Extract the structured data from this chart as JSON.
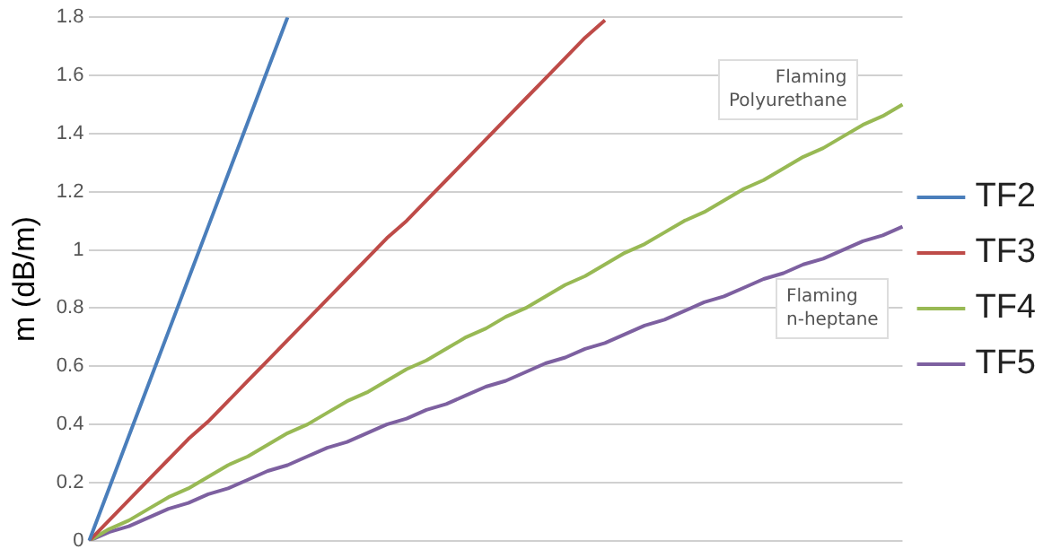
{
  "chart_data": {
    "type": "line",
    "ylabel": "m (dB/m)",
    "categories": [
      null,
      null,
      null,
      null,
      null,
      null,
      null,
      null,
      null,
      null,
      null,
      null,
      null,
      null,
      null,
      null,
      null,
      null,
      null,
      null,
      null,
      null,
      null,
      null,
      null,
      null,
      null,
      null,
      null,
      null,
      null,
      null,
      null,
      null,
      null,
      null,
      null,
      null,
      null,
      null,
      null,
      null
    ],
    "series": [
      {
        "name": "TF2",
        "color": "#4a7ebb",
        "values": [
          0,
          0.18,
          0.36,
          0.54,
          0.72,
          0.9,
          1.08,
          1.26,
          1.44,
          1.62,
          1.8,
          null,
          null,
          null,
          null,
          null,
          null,
          null,
          null,
          null,
          null,
          null,
          null,
          null,
          null,
          null,
          null,
          null,
          null,
          null,
          null,
          null,
          null,
          null,
          null,
          null,
          null,
          null,
          null,
          null,
          null,
          null
        ]
      },
      {
        "name": "TF3",
        "color": "#be4b48",
        "values": [
          0,
          0.07,
          0.14,
          0.21,
          0.28,
          0.35,
          0.41,
          0.48,
          0.55,
          0.62,
          0.69,
          0.76,
          0.83,
          0.9,
          0.97,
          1.04,
          1.1,
          1.17,
          1.24,
          1.31,
          1.38,
          1.45,
          1.52,
          1.59,
          1.66,
          1.73,
          1.79,
          null,
          null,
          null,
          null,
          null,
          null,
          null,
          null,
          null,
          null,
          null,
          null,
          null,
          null,
          null
        ]
      },
      {
        "name": "TF4",
        "color": "#98b954",
        "values": [
          0,
          0.04,
          0.07,
          0.11,
          0.15,
          0.18,
          0.22,
          0.26,
          0.29,
          0.33,
          0.37,
          0.4,
          0.44,
          0.48,
          0.51,
          0.55,
          0.59,
          0.62,
          0.66,
          0.7,
          0.73,
          0.77,
          0.8,
          0.84,
          0.88,
          0.91,
          0.95,
          0.99,
          1.02,
          1.06,
          1.1,
          1.13,
          1.17,
          1.21,
          1.24,
          1.28,
          1.32,
          1.35,
          1.39,
          1.43,
          1.46,
          1.5
        ]
      },
      {
        "name": "TF5",
        "color": "#7d60a0",
        "values": [
          0,
          0.03,
          0.05,
          0.08,
          0.11,
          0.13,
          0.16,
          0.18,
          0.21,
          0.24,
          0.26,
          0.29,
          0.32,
          0.34,
          0.37,
          0.4,
          0.42,
          0.45,
          0.47,
          0.5,
          0.53,
          0.55,
          0.58,
          0.61,
          0.63,
          0.66,
          0.68,
          0.71,
          0.74,
          0.76,
          0.79,
          0.82,
          0.84,
          0.87,
          0.9,
          0.92,
          0.95,
          0.97,
          1,
          1.03,
          1.05,
          1.08
        ]
      }
    ],
    "ylim": [
      0,
      1.8
    ],
    "yticks": [
      0,
      0.2,
      0.4,
      0.6,
      0.8,
      1,
      1.2,
      1.4,
      1.6,
      1.8
    ],
    "grid": "y",
    "legend": "right",
    "tick_labels": "y",
    "marker": "none",
    "line_style": "solid",
    "annotations": [
      "Flaming\nPolyurethane",
      "Flaming\nn-heptane"
    ]
  }
}
